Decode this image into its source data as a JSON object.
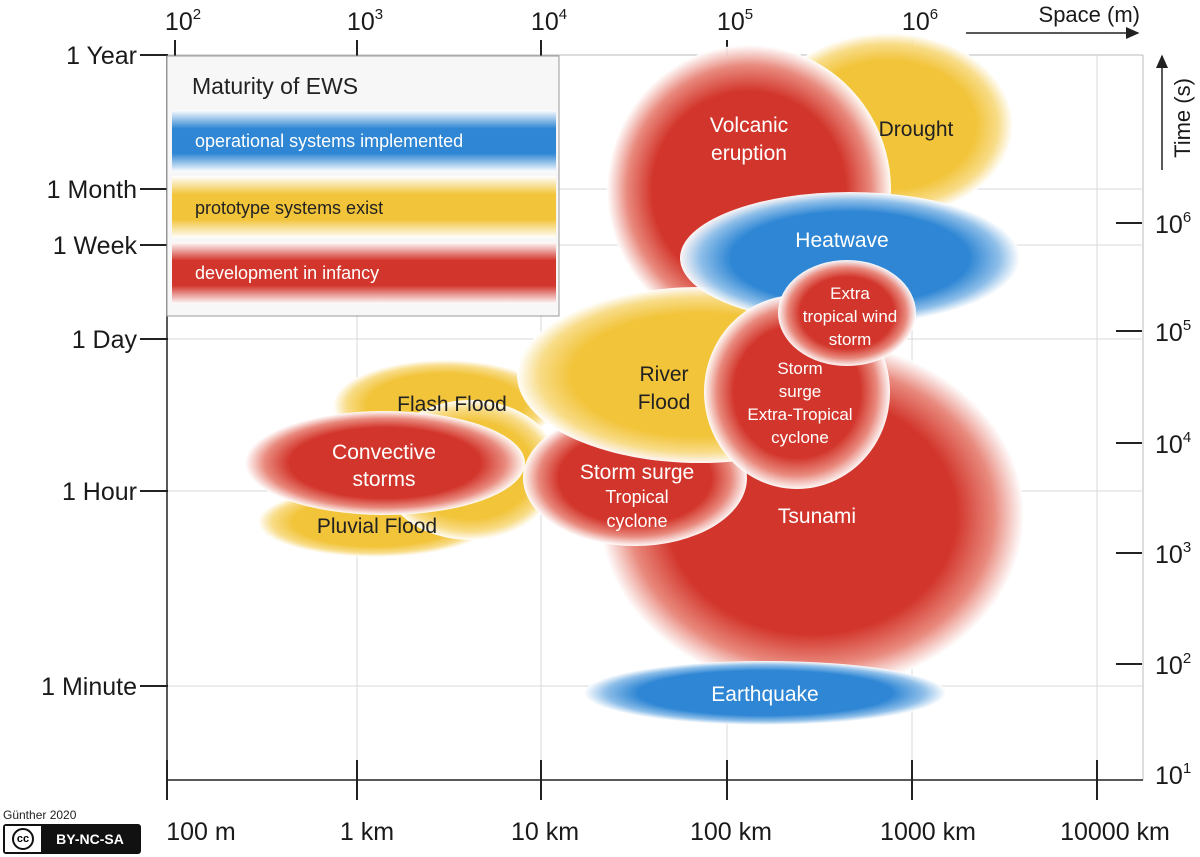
{
  "legend": {
    "title": "Maturity of EWS",
    "items": [
      {
        "label": "operational systems implemented",
        "color": "#2e86d4"
      },
      {
        "label": "prototype systems exist",
        "color": "#f2c43a"
      },
      {
        "label": "development in infancy",
        "color": "#d2352b"
      }
    ]
  },
  "axes": {
    "space_title": "Space (m)",
    "time_title": "Time (s)",
    "top_ticks": [
      {
        "base": "10",
        "exp": "2"
      },
      {
        "base": "10",
        "exp": "3"
      },
      {
        "base": "10",
        "exp": "4"
      },
      {
        "base": "10",
        "exp": "5"
      },
      {
        "base": "10",
        "exp": "6"
      }
    ],
    "bottom_ticks": [
      "100 m",
      "1 km",
      "10 km",
      "100 km",
      "1000 km",
      "10000 km"
    ],
    "left_ticks": [
      "1 Year",
      "1 Month",
      "1 Week",
      "1 Day",
      "1 Hour",
      "1 Minute"
    ],
    "right_ticks": [
      {
        "base": "10",
        "exp": "6"
      },
      {
        "base": "10",
        "exp": "5"
      },
      {
        "base": "10",
        "exp": "4"
      },
      {
        "base": "10",
        "exp": "3"
      },
      {
        "base": "10",
        "exp": "2"
      },
      {
        "base": "10",
        "exp": "1"
      }
    ]
  },
  "hazards": [
    {
      "id": "drought",
      "lines": [
        "Drought"
      ],
      "maturity": "prototype"
    },
    {
      "id": "volcanic",
      "lines": [
        "Volcanic",
        "eruption"
      ],
      "maturity": "infancy"
    },
    {
      "id": "tsunami",
      "lines": [
        "Tsunami"
      ],
      "maturity": "infancy"
    },
    {
      "id": "flashflood",
      "lines": [
        "Flash Flood"
      ],
      "maturity": "prototype"
    },
    {
      "id": "pluvial",
      "lines": [
        "Pluvial Flood"
      ],
      "maturity": "prototype"
    },
    {
      "id": "convective",
      "lines": [
        "Convective",
        "storms"
      ],
      "maturity": "infancy"
    },
    {
      "id": "stormsurge-tc",
      "lines": [
        "Storm surge",
        "Tropical",
        "cyclone"
      ],
      "maturity": "infancy"
    },
    {
      "id": "riverflood",
      "lines": [
        "River",
        "Flood"
      ],
      "maturity": "prototype"
    },
    {
      "id": "heatwave",
      "lines": [
        "Heatwave"
      ],
      "maturity": "operational"
    },
    {
      "id": "stormsurge-etc",
      "lines": [
        "Storm",
        "surge",
        "Extra-Tropical",
        "cyclone"
      ],
      "maturity": "infancy"
    },
    {
      "id": "extratropical",
      "lines": [
        "Extra",
        "tropical wind",
        "storm"
      ],
      "maturity": "infancy"
    },
    {
      "id": "earthquake",
      "lines": [
        "Earthquake"
      ],
      "maturity": "operational"
    }
  ],
  "credit": {
    "author": "Günther 2020",
    "license": "BY-NC-SA",
    "cc_logo": "cc"
  }
}
